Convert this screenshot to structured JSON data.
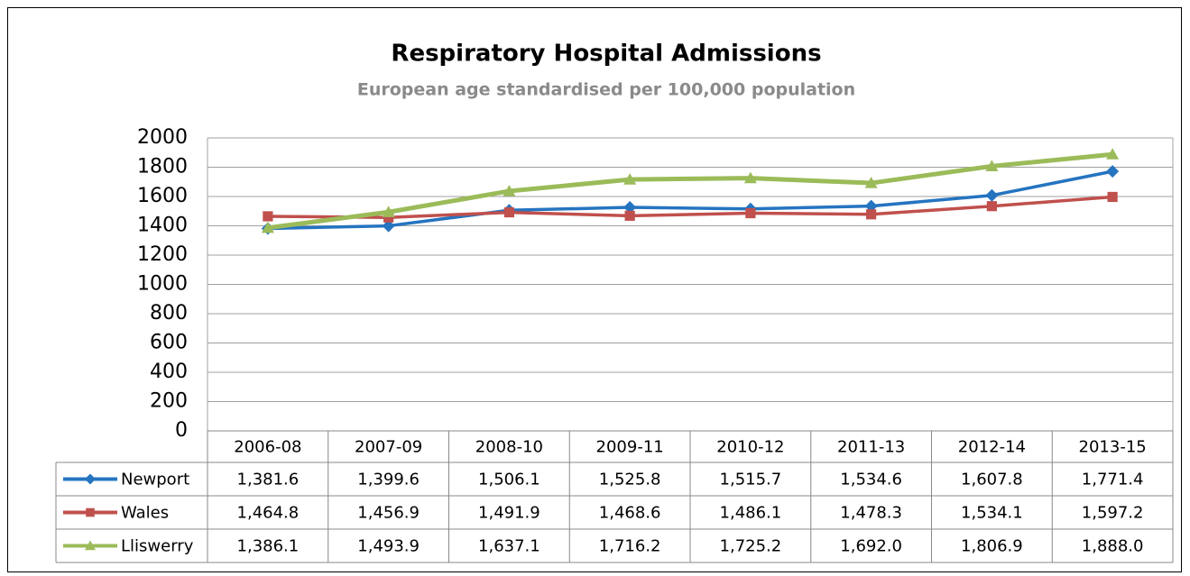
{
  "chart_data": {
    "type": "line",
    "title": "Respiratory Hospital Admissions",
    "subtitle": "European age standardised  per 100,000 population",
    "categories": [
      "2006-08",
      "2007-09",
      "2008-10",
      "2009-11",
      "2010-12",
      "2011-13",
      "2012-14",
      "2013-15"
    ],
    "series": [
      {
        "name": "Newport",
        "color": "#2574c0",
        "marker": "diamond",
        "values": [
          1381.6,
          1399.6,
          1506.1,
          1525.8,
          1515.7,
          1534.6,
          1607.8,
          1771.4
        ],
        "value_labels": [
          "1,381.6",
          "1,399.6",
          "1,506.1",
          "1,525.8",
          "1,515.7",
          "1,534.6",
          "1,607.8",
          "1,771.4"
        ]
      },
      {
        "name": "Wales",
        "color": "#c0504d",
        "marker": "square",
        "values": [
          1464.8,
          1456.9,
          1491.9,
          1468.6,
          1486.1,
          1478.3,
          1534.1,
          1597.2
        ],
        "value_labels": [
          "1,464.8",
          "1,456.9",
          "1,491.9",
          "1,468.6",
          "1,486.1",
          "1,478.3",
          "1,534.1",
          "1,597.2"
        ]
      },
      {
        "name": "Lliswerry",
        "color": "#9bbb59",
        "marker": "triangle",
        "values": [
          1386.1,
          1493.9,
          1637.1,
          1716.2,
          1725.2,
          1692.0,
          1806.9,
          1888.0
        ],
        "value_labels": [
          "1,386.1",
          "1,493.9",
          "1,637.1",
          "1,716.2",
          "1,725.2",
          "1,692.0",
          "1,806.9",
          "1,888.0"
        ]
      }
    ],
    "ylim": [
      0,
      2000
    ],
    "yticks": [
      0,
      200,
      400,
      600,
      800,
      1000,
      1200,
      1400,
      1600,
      1800,
      2000
    ],
    "grid": true
  }
}
